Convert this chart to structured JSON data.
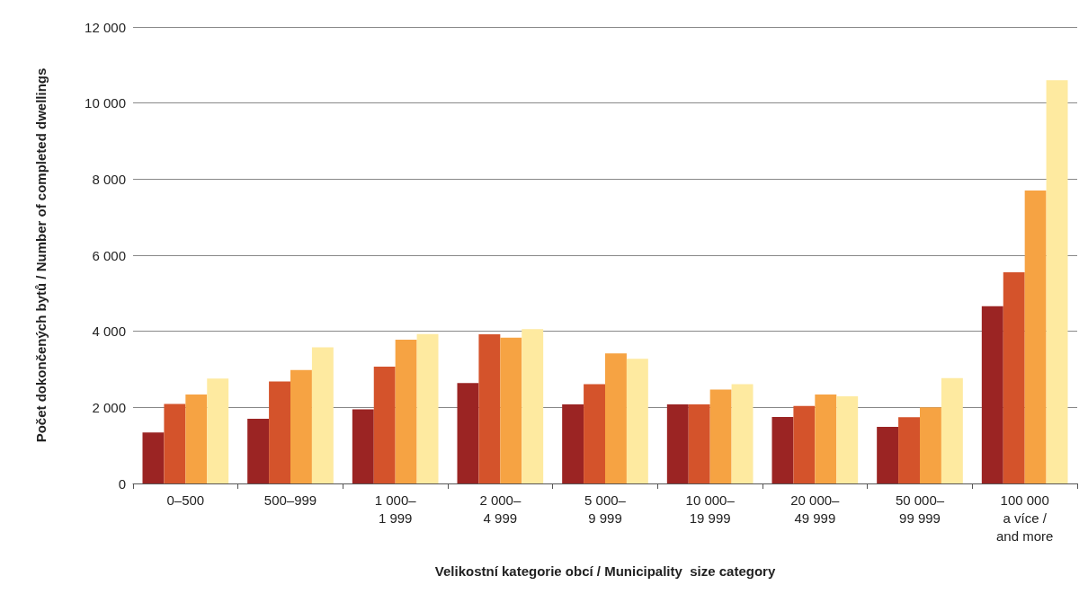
{
  "chart_data": {
    "type": "bar",
    "xlabel": "Velikostní kategorie obcí / Municipality  size category",
    "ylabel": "Počet dokončených bytů / Number of completed dwellings",
    "categories": [
      "0–500",
      "500–999",
      "1 000–\n1 999",
      "2 000–\n4 999",
      "5 000–\n9 999",
      "10 000–\n19 999",
      "20 000–\n49 999",
      "50 000–\n99 999",
      "100 000\na více /\nand more"
    ],
    "series": [
      {
        "color": "#9b2423",
        "values": [
          1340,
          1700,
          1950,
          2640,
          2080,
          2080,
          1750,
          1490,
          4660
        ]
      },
      {
        "color": "#d4532b",
        "values": [
          2090,
          2680,
          3070,
          3920,
          2610,
          2080,
          2040,
          1740,
          5550
        ]
      },
      {
        "color": "#f6a343",
        "values": [
          2340,
          2980,
          3780,
          3830,
          3420,
          2470,
          2340,
          2000,
          7700
        ]
      },
      {
        "color": "#feeaa0",
        "values": [
          2760,
          3580,
          3930,
          4060,
          3280,
          2610,
          2290,
          2770,
          10600
        ]
      }
    ],
    "ylim": [
      0,
      12000
    ],
    "yticks": [
      0,
      {
        "value": 2000,
        "label": "2 000"
      },
      {
        "value": 4000,
        "label": "4 000"
      },
      {
        "value": 6000,
        "label": "6 000"
      },
      {
        "value": 8000,
        "label": "8 000"
      },
      {
        "value": 10000,
        "label": "10 000"
      },
      {
        "value": 12000,
        "label": "12 000"
      }
    ],
    "grid": "y"
  }
}
